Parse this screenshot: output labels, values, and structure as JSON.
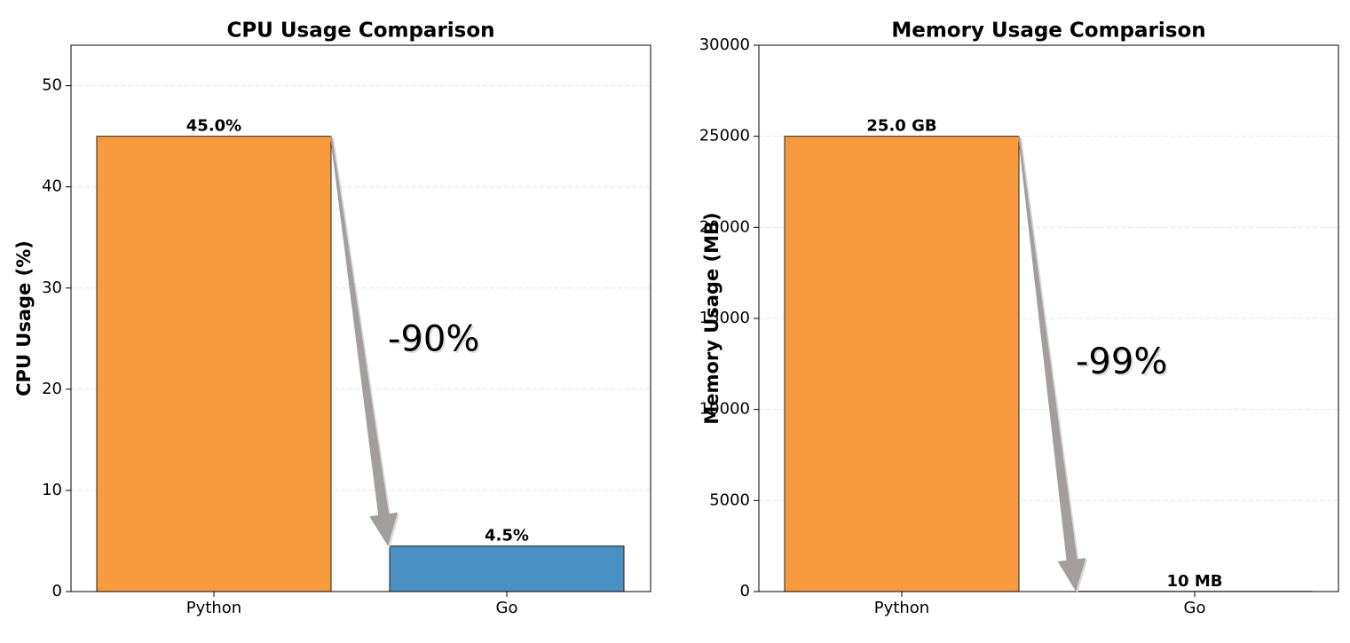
{
  "chart_data": [
    {
      "type": "bar",
      "title": "CPU Usage Comparison",
      "ylabel": "CPU Usage (%)",
      "categories": [
        "Python",
        "Go"
      ],
      "values": [
        45.0,
        4.5
      ],
      "value_labels": [
        "45.0%",
        "4.5%"
      ],
      "colors": [
        "#f99a3f",
        "#4a90c2"
      ],
      "ylim": [
        0,
        54
      ],
      "yticks": [
        0,
        10,
        20,
        30,
        40,
        50
      ],
      "grid": true,
      "annotation": "-90%"
    },
    {
      "type": "bar",
      "title": "Memory Usage Comparison",
      "ylabel": "Memory Usage (MB)",
      "categories": [
        "Python",
        "Go"
      ],
      "values": [
        25000,
        10
      ],
      "value_labels": [
        "25.0 GB",
        "10 MB"
      ],
      "colors": [
        "#f99a3f",
        "#4a90c2"
      ],
      "ylim": [
        0,
        30000
      ],
      "yticks": [
        0,
        5000,
        10000,
        15000,
        20000,
        25000,
        30000
      ],
      "grid": true,
      "annotation": "-99%"
    }
  ]
}
